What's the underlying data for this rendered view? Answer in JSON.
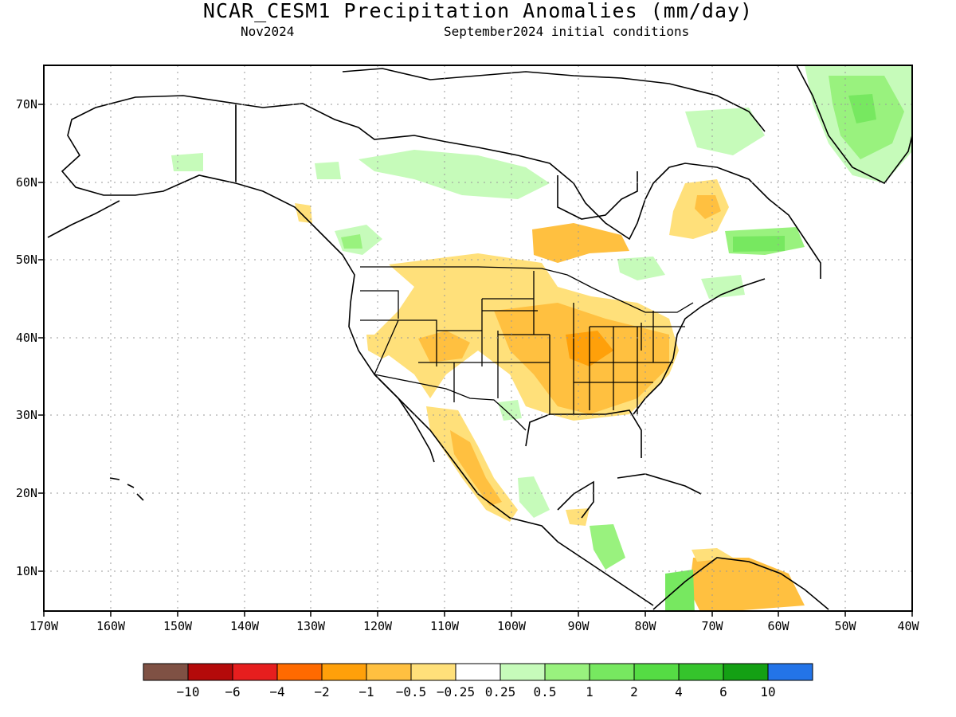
{
  "title": "NCAR_CESM1 Precipitation Anomalies (mm/day)",
  "subtitle_left": "Nov2024",
  "subtitle_right": "September2024 initial conditions",
  "map": {
    "lon_range": [
      -170,
      -40
    ],
    "lat_range": [
      5,
      75
    ],
    "lon_ticks": [
      "170W",
      "160W",
      "150W",
      "140W",
      "130W",
      "120W",
      "110W",
      "100W",
      "90W",
      "80W",
      "70W",
      "60W",
      "50W",
      "40W"
    ],
    "lat_ticks": [
      "70N",
      "60N",
      "50N",
      "40N",
      "30N",
      "20N",
      "10N"
    ]
  },
  "colorbar": {
    "colors": [
      "#7f5144",
      "#b40a0a",
      "#e61e1e",
      "#ff6a00",
      "#ffa00a",
      "#ffc040",
      "#ffe07a",
      "#ffffff",
      "#c6fbba",
      "#99f27e",
      "#77e860",
      "#55dc44",
      "#35c42c",
      "#14a014",
      "#2374e8"
    ],
    "labels": [
      "−10",
      "−6",
      "−4",
      "−2",
      "−1",
      "−0.5",
      "−0.25",
      "0.25",
      "0.5",
      "1",
      "2",
      "4",
      "6",
      "10"
    ]
  }
}
